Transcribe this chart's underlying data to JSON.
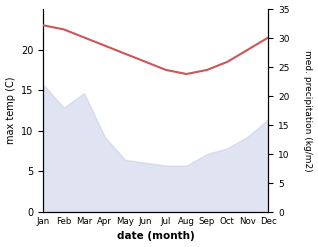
{
  "months": [
    "Jan",
    "Feb",
    "Mar",
    "Apr",
    "May",
    "Jun",
    "Jul",
    "Aug",
    "Sep",
    "Oct",
    "Nov",
    "Dec"
  ],
  "max_temp": [
    23.0,
    22.5,
    21.5,
    20.5,
    19.5,
    18.5,
    17.5,
    17.0,
    17.5,
    18.5,
    20.0,
    21.5
  ],
  "precipitation": [
    22.0,
    18.0,
    20.5,
    13.0,
    9.0,
    8.5,
    8.0,
    8.0,
    10.0,
    11.0,
    13.0,
    16.0
  ],
  "temp_color": "#cc5555",
  "fill_color": "#c5cce8",
  "temp_ylim": [
    0,
    25
  ],
  "precip_ylim": [
    0,
    35
  ],
  "xlabel": "date (month)",
  "ylabel_left": "max temp (C)",
  "ylabel_right": "med. precipitation (kg/m2)",
  "temp_yticks": [
    0,
    5,
    10,
    15,
    20
  ],
  "precip_yticks": [
    0,
    5,
    10,
    15,
    20,
    25,
    30,
    35
  ],
  "temp_linewidth": 1.5,
  "fill_alpha": 0.55
}
